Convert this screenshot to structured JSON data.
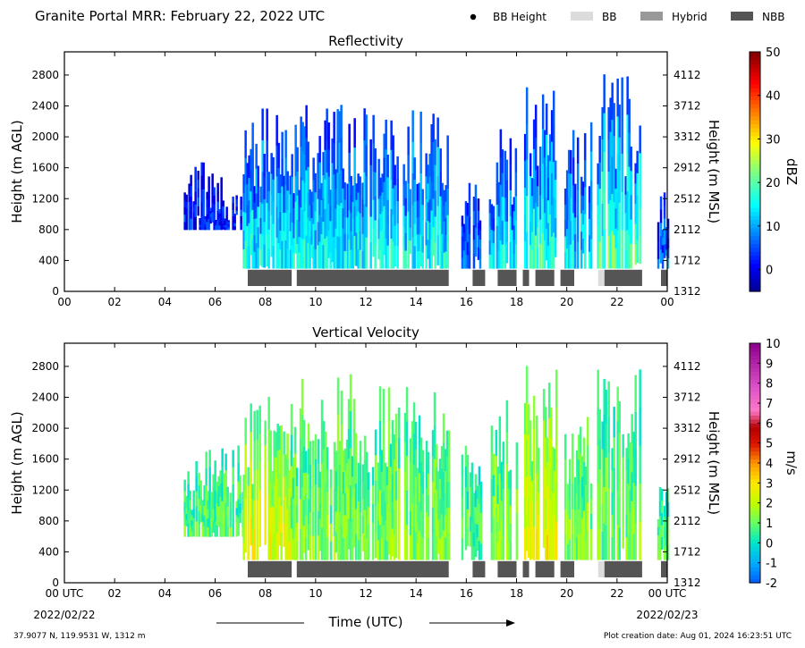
{
  "header": {
    "title": "Granite Portal MRR:  February 22, 2022 UTC"
  },
  "legend": {
    "placement": "top-right",
    "items": [
      {
        "label": "BB Height",
        "marker": "dot",
        "color": "#000000"
      },
      {
        "label": "BB",
        "marker": "bar",
        "color": "#dcdcdc"
      },
      {
        "label": "Hybrid",
        "marker": "bar",
        "color": "#999999"
      },
      {
        "label": "NBB",
        "marker": "bar",
        "color": "#555555"
      }
    ]
  },
  "chart_data": [
    {
      "type": "heatmap",
      "title": "Reflectivity",
      "ylabel": "Height (m AGL)",
      "ylabel_right": "Height (m MSL)",
      "xlim": [
        0,
        24
      ],
      "ylim": [
        0,
        3100
      ],
      "x_ticks": [
        "00",
        "02",
        "04",
        "06",
        "08",
        "10",
        "12",
        "14",
        "16",
        "18",
        "20",
        "22",
        "00"
      ],
      "y_ticks": [
        0,
        400,
        800,
        1200,
        1600,
        2000,
        2400,
        2800
      ],
      "y_ticks_right": [
        1312,
        1712,
        2112,
        2512,
        2912,
        3312,
        3712,
        4112
      ],
      "colorbar": {
        "label": "dBZ",
        "range": [
          -5,
          50
        ],
        "ticks": [
          0,
          10,
          20,
          30,
          40,
          50
        ],
        "colormap": "jet"
      },
      "precip_periods": [
        {
          "start": 4.75,
          "end": 7.1,
          "bottom": 800,
          "top": 1600,
          "intensity": 2
        },
        {
          "start": 7.1,
          "end": 15.3,
          "bottom": 300,
          "top": 2300,
          "intensity": 13
        },
        {
          "start": 15.8,
          "end": 16.55,
          "bottom": 300,
          "top": 1500,
          "intensity": 5
        },
        {
          "start": 16.9,
          "end": 18.0,
          "bottom": 300,
          "top": 2000,
          "intensity": 12
        },
        {
          "start": 18.3,
          "end": 19.6,
          "bottom": 300,
          "top": 2600,
          "intensity": 15
        },
        {
          "start": 19.9,
          "end": 21.0,
          "bottom": 300,
          "top": 2100,
          "intensity": 12
        },
        {
          "start": 21.2,
          "end": 22.9,
          "bottom": 300,
          "top": 2700,
          "intensity": 17
        },
        {
          "start": 23.6,
          "end": 24.0,
          "bottom": 300,
          "top": 1400,
          "intensity": 6
        }
      ],
      "bb_type_bars": [
        {
          "start": 7.3,
          "end": 9.05,
          "type": "NBB"
        },
        {
          "start": 9.25,
          "end": 15.3,
          "type": "NBB"
        },
        {
          "start": 16.25,
          "end": 16.75,
          "type": "NBB"
        },
        {
          "start": 17.25,
          "end": 18.0,
          "type": "NBB"
        },
        {
          "start": 18.25,
          "end": 18.5,
          "type": "NBB"
        },
        {
          "start": 18.75,
          "end": 19.5,
          "type": "NBB"
        },
        {
          "start": 19.75,
          "end": 20.3,
          "type": "NBB"
        },
        {
          "start": 21.25,
          "end": 21.5,
          "type": "BB"
        },
        {
          "start": 21.5,
          "end": 23.0,
          "type": "NBB"
        },
        {
          "start": 23.75,
          "end": 24.0,
          "type": "NBB"
        }
      ]
    },
    {
      "type": "heatmap",
      "title": "Vertical Velocity",
      "xlabel": "Time (UTC)",
      "ylabel": "Height (m AGL)",
      "ylabel_right": "Height (m MSL)",
      "xlim": [
        0,
        24
      ],
      "ylim": [
        0,
        3100
      ],
      "x_ticks": [
        "00 UTC",
        "02",
        "04",
        "06",
        "08",
        "10",
        "12",
        "14",
        "16",
        "18",
        "20",
        "22",
        "00 UTC"
      ],
      "x_date_labels": {
        "start": "2022/02/22",
        "end": "2022/02/23"
      },
      "y_ticks": [
        0,
        400,
        800,
        1200,
        1600,
        2000,
        2400,
        2800
      ],
      "y_ticks_right": [
        1312,
        1712,
        2112,
        2512,
        2912,
        3312,
        3712,
        4112
      ],
      "colorbar": {
        "label": "m/s",
        "range": [
          -2,
          10
        ],
        "ticks": [
          -2,
          -1,
          0,
          1,
          2,
          3,
          4,
          5,
          6,
          7,
          8,
          9,
          10
        ],
        "colormap": "velocity"
      },
      "precip_periods": [
        {
          "start": 4.75,
          "end": 7.1,
          "bottom": 600,
          "top": 1700,
          "intensity": 0.8
        },
        {
          "start": 7.1,
          "end": 9.0,
          "bottom": 300,
          "top": 2300,
          "intensity": 2.2
        },
        {
          "start": 9.0,
          "end": 15.3,
          "bottom": 300,
          "top": 2600,
          "intensity": 1.2
        },
        {
          "start": 15.8,
          "end": 16.55,
          "bottom": 300,
          "top": 1700,
          "intensity": 0.7
        },
        {
          "start": 16.9,
          "end": 18.0,
          "bottom": 300,
          "top": 2300,
          "intensity": 1.3
        },
        {
          "start": 18.3,
          "end": 19.6,
          "bottom": 300,
          "top": 2700,
          "intensity": 2.4
        },
        {
          "start": 19.9,
          "end": 21.0,
          "bottom": 300,
          "top": 2200,
          "intensity": 1.2
        },
        {
          "start": 21.2,
          "end": 22.9,
          "bottom": 300,
          "top": 2700,
          "intensity": 1.0
        },
        {
          "start": 23.6,
          "end": 24.0,
          "bottom": 300,
          "top": 1400,
          "intensity": 0.6
        }
      ],
      "bb_type_bars": [
        {
          "start": 7.3,
          "end": 9.05,
          "type": "NBB"
        },
        {
          "start": 9.25,
          "end": 15.3,
          "type": "NBB"
        },
        {
          "start": 16.25,
          "end": 16.75,
          "type": "NBB"
        },
        {
          "start": 17.25,
          "end": 18.0,
          "type": "NBB"
        },
        {
          "start": 18.25,
          "end": 18.5,
          "type": "NBB"
        },
        {
          "start": 18.75,
          "end": 19.5,
          "type": "NBB"
        },
        {
          "start": 19.75,
          "end": 20.3,
          "type": "NBB"
        },
        {
          "start": 21.25,
          "end": 21.5,
          "type": "BB"
        },
        {
          "start": 21.5,
          "end": 23.0,
          "type": "NBB"
        },
        {
          "start": 23.75,
          "end": 24.0,
          "type": "NBB"
        }
      ]
    }
  ],
  "footer": {
    "location": "37.9077 N, 119.9531 W, 1312 m",
    "creation_date": "Plot creation date: Aug 01, 2024 16:23:51 UTC"
  }
}
